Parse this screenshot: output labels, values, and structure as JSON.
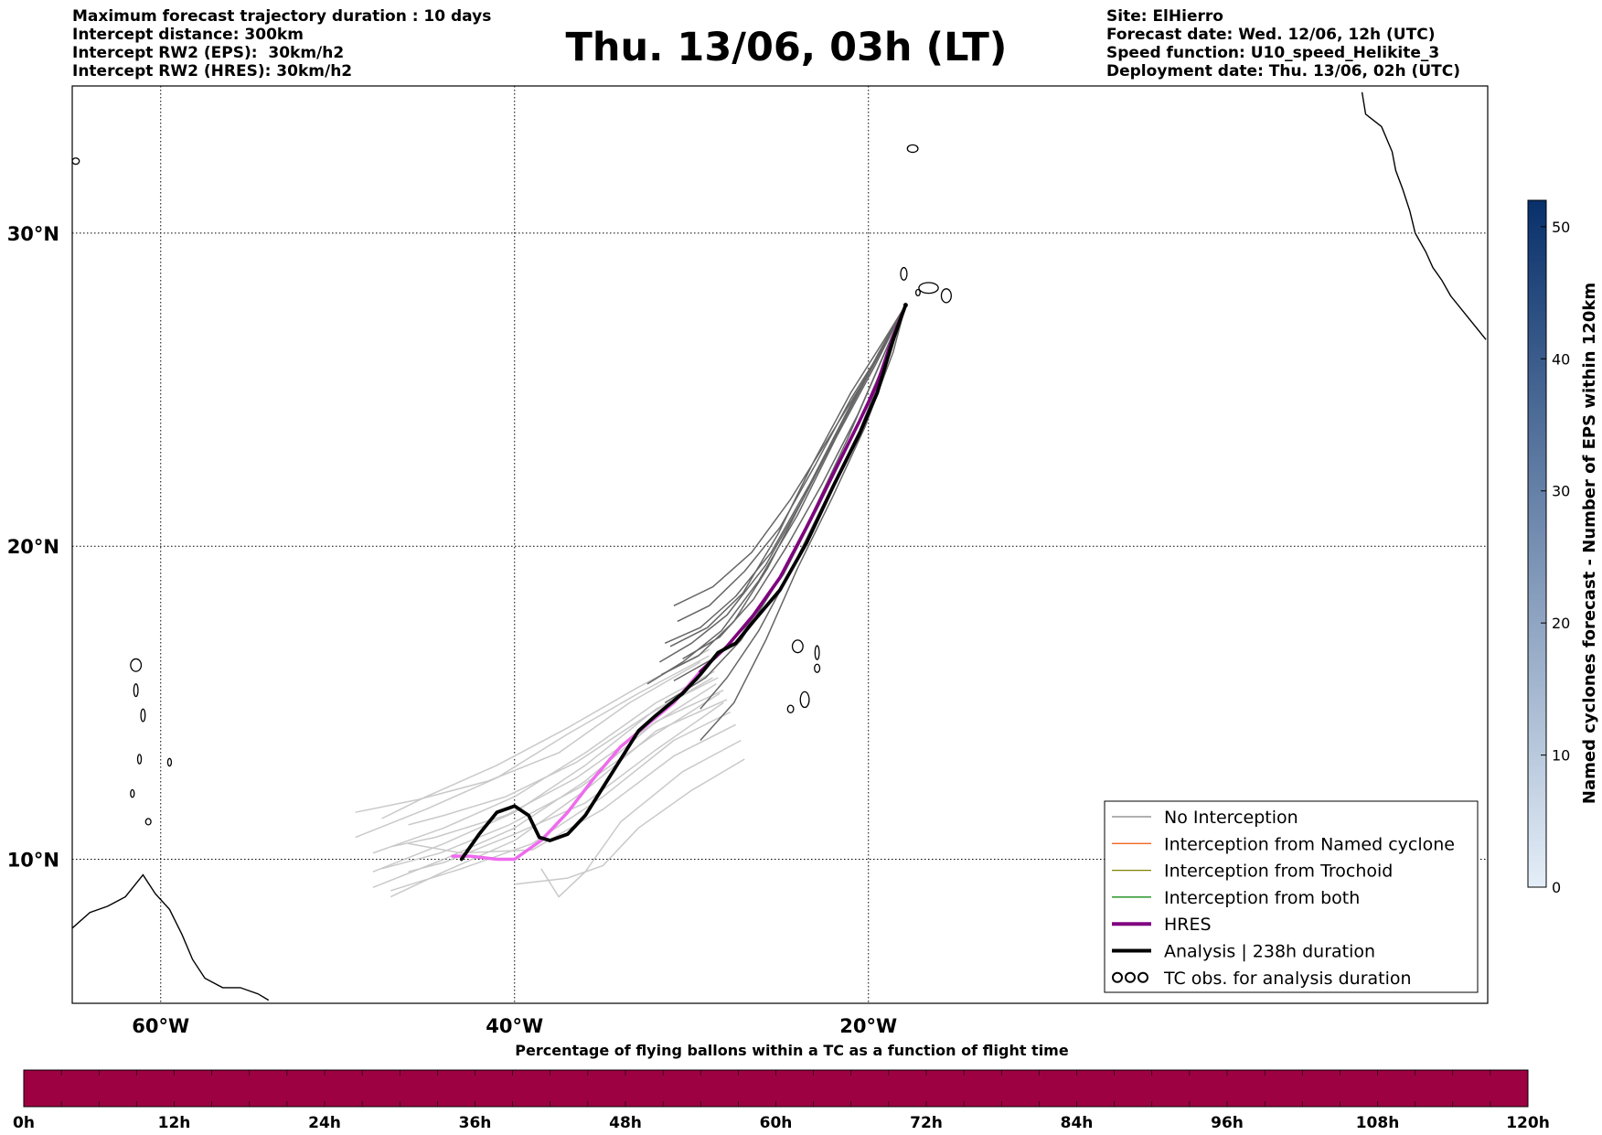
{
  "header_left": [
    "Maximum forecast trajectory duration : 10 days",
    "Intercept distance: 300km",
    "Intercept RW2 (EPS):  30km/h2",
    "Intercept RW2 (HRES): 30km/h2"
  ],
  "title": "Thu. 13/06, 03h (LT)",
  "header_right": [
    "Site: ElHierro",
    "Forecast date: Wed. 12/06, 12h (UTC)",
    "Speed function: U10_speed_Helikite_3",
    "Deployment date: Thu. 13/06, 02h (UTC)"
  ],
  "map": {
    "lon_range": [
      -65,
      15
    ],
    "lat_range": [
      5.4,
      34.7
    ],
    "lat_ticks": [
      {
        "value": 30,
        "label": "30°N"
      },
      {
        "value": 20,
        "label": "20°N"
      },
      {
        "value": 10,
        "label": "10°N"
      }
    ],
    "lon_ticks": [
      {
        "value": -60,
        "label": "60°W"
      },
      {
        "value": -40,
        "label": "40°W"
      },
      {
        "value": -20,
        "label": "20°W"
      }
    ],
    "deployment_site": {
      "lon": -17.9,
      "lat": 27.7
    },
    "hres_track": [
      [
        -17.9,
        27.7
      ],
      [
        -18.6,
        26.7
      ],
      [
        -19.5,
        25.2
      ],
      [
        -20.5,
        24.0
      ],
      [
        -22.0,
        22.3
      ],
      [
        -23.5,
        20.6
      ],
      [
        -25.0,
        19.0
      ],
      [
        -26.5,
        17.8
      ],
      [
        -28.0,
        16.8
      ],
      [
        -29.5,
        16.0
      ],
      [
        -31.0,
        15.0
      ],
      [
        -32.5,
        14.3
      ],
      [
        -34.0,
        13.6
      ],
      [
        -35.5,
        12.6
      ],
      [
        -37.0,
        11.5
      ],
      [
        -38.5,
        10.6
      ],
      [
        -40.0,
        10.0
      ],
      [
        -41.0,
        10.0
      ],
      [
        -42.5,
        10.1
      ],
      [
        -43.5,
        10.1
      ]
    ],
    "analysis_track": [
      [
        -17.9,
        27.7
      ],
      [
        -18.6,
        26.6
      ],
      [
        -19.5,
        24.9
      ],
      [
        -20.5,
        23.6
      ],
      [
        -22.0,
        21.9
      ],
      [
        -23.5,
        20.1
      ],
      [
        -25.0,
        18.6
      ],
      [
        -26.5,
        17.6
      ],
      [
        -27.5,
        16.9
      ],
      [
        -28.5,
        16.6
      ],
      [
        -29.5,
        15.9
      ],
      [
        -30.5,
        15.3
      ],
      [
        -32.0,
        14.6
      ],
      [
        -33.0,
        14.1
      ],
      [
        -34.0,
        13.2
      ],
      [
        -35.0,
        12.3
      ],
      [
        -36.0,
        11.4
      ],
      [
        -37.0,
        10.8
      ],
      [
        -38.0,
        10.6
      ],
      [
        -38.6,
        10.7
      ],
      [
        -39.2,
        11.4
      ],
      [
        -40.0,
        11.7
      ],
      [
        -41.0,
        11.5
      ],
      [
        -42.0,
        10.8
      ],
      [
        -43.0,
        10.0
      ]
    ],
    "eps_far": [
      [
        [
          -29,
          16.7
        ],
        [
          -33,
          15.5
        ],
        [
          -37,
          14.2
        ],
        [
          -41,
          13.0
        ],
        [
          -45,
          12.0
        ],
        [
          -47.5,
          11.3
        ]
      ],
      [
        [
          -29,
          16.5
        ],
        [
          -33,
          15.3
        ],
        [
          -37,
          14.0
        ],
        [
          -41,
          12.6
        ],
        [
          -45,
          11.6
        ],
        [
          -49,
          10.7
        ]
      ],
      [
        [
          -28.7,
          16.0
        ],
        [
          -32,
          15.0
        ],
        [
          -36,
          13.4
        ],
        [
          -40,
          12.0
        ],
        [
          -44,
          11.0
        ],
        [
          -48,
          10.2
        ]
      ],
      [
        [
          -28.5,
          15.8
        ],
        [
          -32,
          14.8
        ],
        [
          -36,
          13.0
        ],
        [
          -40,
          11.5
        ],
        [
          -44,
          10.5
        ],
        [
          -48,
          9.6
        ]
      ],
      [
        [
          -28.2,
          15.4
        ],
        [
          -32,
          14.4
        ],
        [
          -36,
          12.5
        ],
        [
          -40,
          11.0
        ],
        [
          -44,
          10.0
        ],
        [
          -48,
          9.1
        ]
      ],
      [
        [
          -28.0,
          15.1
        ],
        [
          -32,
          14.1
        ],
        [
          -36,
          12.2
        ],
        [
          -40,
          10.6
        ],
        [
          -44,
          9.6
        ],
        [
          -47,
          8.8
        ]
      ],
      [
        [
          -27.8,
          14.7
        ],
        [
          -31,
          13.8
        ],
        [
          -35,
          12.0
        ],
        [
          -39,
          10.5
        ],
        [
          -43,
          9.7
        ],
        [
          -47,
          9.0
        ]
      ],
      [
        [
          -27.5,
          14.3
        ],
        [
          -31,
          13.3
        ],
        [
          -35,
          11.6
        ],
        [
          -39,
          10.3
        ],
        [
          -43,
          10.2
        ],
        [
          -46,
          10.5
        ]
      ],
      [
        [
          -27.2,
          13.8
        ],
        [
          -30.5,
          12.8
        ],
        [
          -34,
          11.2
        ],
        [
          -36,
          9.6
        ],
        [
          -37.5,
          8.8
        ],
        [
          -38.5,
          9.7
        ]
      ],
      [
        [
          -27.0,
          13.2
        ],
        [
          -30,
          12.2
        ],
        [
          -33,
          11.0
        ],
        [
          -35,
          9.8
        ],
        [
          -37,
          9.4
        ],
        [
          -40,
          9.2
        ]
      ],
      [
        [
          -28.8,
          15.8
        ],
        [
          -32.5,
          14.6
        ],
        [
          -36.5,
          13.1
        ],
        [
          -40.5,
          12.0
        ],
        [
          -44,
          11.4
        ],
        [
          -46,
          11.1
        ]
      ],
      [
        [
          -28.6,
          15.6
        ],
        [
          -32.5,
          14.2
        ],
        [
          -36.5,
          12.6
        ],
        [
          -40.5,
          11.4
        ],
        [
          -44.5,
          10.7
        ],
        [
          -47,
          10.4
        ]
      ],
      [
        [
          -28.4,
          15.3
        ],
        [
          -32.3,
          13.9
        ],
        [
          -36.3,
          12.3
        ],
        [
          -40.3,
          11.1
        ],
        [
          -44.2,
          10.2
        ],
        [
          -47.5,
          9.7
        ]
      ],
      [
        [
          -28.2,
          15.0
        ],
        [
          -32.0,
          13.5
        ],
        [
          -36.0,
          11.8
        ],
        [
          -40.0,
          10.8
        ],
        [
          -44.0,
          9.9
        ],
        [
          -46,
          9.6
        ]
      ],
      [
        [
          -29.5,
          16.3
        ],
        [
          -33.5,
          15.0
        ],
        [
          -37.5,
          13.4
        ],
        [
          -41.5,
          12.5
        ],
        [
          -45.5,
          11.9
        ],
        [
          -49,
          11.5
        ]
      ]
    ],
    "eps_near": [
      [
        [
          -17.9,
          27.7
        ],
        [
          -19.0,
          26.5
        ],
        [
          -21.0,
          24.7
        ],
        [
          -23.0,
          22.6
        ],
        [
          -25.0,
          20.6
        ],
        [
          -27.0,
          19.2
        ],
        [
          -29.0,
          18.1
        ],
        [
          -30.8,
          17.6
        ]
      ],
      [
        [
          -17.9,
          27.7
        ],
        [
          -19.2,
          26.4
        ],
        [
          -21.2,
          24.3
        ],
        [
          -23.3,
          22.0
        ],
        [
          -25.5,
          19.8
        ],
        [
          -27.5,
          18.4
        ],
        [
          -29.5,
          17.4
        ],
        [
          -31.5,
          16.9
        ]
      ],
      [
        [
          -17.9,
          27.7
        ],
        [
          -19.4,
          26.2
        ],
        [
          -21.5,
          23.9
        ],
        [
          -23.6,
          21.6
        ],
        [
          -25.8,
          19.4
        ],
        [
          -28.0,
          17.8
        ],
        [
          -30.0,
          16.9
        ],
        [
          -31.8,
          16.3
        ]
      ],
      [
        [
          -17.9,
          27.7
        ],
        [
          -19.0,
          26.0
        ],
        [
          -20.8,
          23.6
        ],
        [
          -22.8,
          21.3
        ],
        [
          -24.8,
          19.1
        ],
        [
          -26.8,
          17.5
        ],
        [
          -28.8,
          16.4
        ],
        [
          -31.0,
          15.7
        ]
      ],
      [
        [
          -17.9,
          27.7
        ],
        [
          -19.3,
          25.9
        ],
        [
          -21.2,
          23.4
        ],
        [
          -23.2,
          21.0
        ],
        [
          -25.2,
          18.8
        ],
        [
          -27.2,
          17.0
        ],
        [
          -29.2,
          15.8
        ],
        [
          -31.5,
          15.0
        ]
      ],
      [
        [
          -17.9,
          27.7
        ],
        [
          -18.8,
          26.1
        ],
        [
          -20.5,
          23.7
        ],
        [
          -22.5,
          21.4
        ],
        [
          -24.4,
          19.2
        ],
        [
          -26.2,
          17.3
        ],
        [
          -28.0,
          15.8
        ],
        [
          -29.5,
          14.8
        ]
      ],
      [
        [
          -17.9,
          27.7
        ],
        [
          -19.6,
          25.8
        ],
        [
          -21.8,
          23.5
        ],
        [
          -24.0,
          21.0
        ],
        [
          -26.2,
          18.9
        ],
        [
          -28.3,
          17.3
        ],
        [
          -30.5,
          16.3
        ],
        [
          -32.5,
          15.6
        ]
      ],
      [
        [
          -17.9,
          27.7
        ],
        [
          -18.6,
          26.2
        ],
        [
          -20.2,
          23.8
        ],
        [
          -22.0,
          21.6
        ],
        [
          -24.0,
          19.3
        ],
        [
          -25.8,
          17.0
        ],
        [
          -27.6,
          15.0
        ],
        [
          -29.5,
          13.8
        ]
      ],
      [
        [
          -17.9,
          27.7
        ],
        [
          -19.8,
          25.7
        ],
        [
          -22.2,
          23.5
        ],
        [
          -24.4,
          21.5
        ],
        [
          -26.6,
          19.8
        ],
        [
          -28.8,
          18.7
        ],
        [
          -31.0,
          18.1
        ]
      ],
      [
        [
          -17.9,
          27.7
        ],
        [
          -18.9,
          26.4
        ],
        [
          -20.6,
          24.2
        ],
        [
          -22.6,
          22.0
        ],
        [
          -24.6,
          20.0
        ],
        [
          -26.5,
          18.3
        ],
        [
          -28.4,
          17.1
        ],
        [
          -30.5,
          16.4
        ]
      ],
      [
        [
          -17.9,
          27.7
        ],
        [
          -19.1,
          26.6
        ],
        [
          -21.0,
          24.9
        ],
        [
          -23.1,
          22.7
        ],
        [
          -25.1,
          20.4
        ],
        [
          -27.1,
          18.5
        ],
        [
          -29.1,
          17.4
        ],
        [
          -31.2,
          16.8
        ]
      ],
      [
        [
          -17.9,
          27.7
        ],
        [
          -19.5,
          26.0
        ],
        [
          -21.6,
          23.8
        ],
        [
          -23.7,
          21.5
        ],
        [
          -25.7,
          19.3
        ],
        [
          -27.6,
          17.6
        ],
        [
          -29.6,
          16.5
        ],
        [
          -31.7,
          15.9
        ]
      ]
    ],
    "islands": [
      {
        "lon": -16.6,
        "lat": 28.25,
        "rx": 0.55,
        "ry": 0.17
      },
      {
        "lon": -18.0,
        "lat": 28.7,
        "rx": 0.18,
        "ry": 0.2
      },
      {
        "lon": -15.6,
        "lat": 28.0,
        "rx": 0.28,
        "ry": 0.22
      },
      {
        "lon": -17.2,
        "lat": 28.1,
        "rx": 0.12,
        "ry": 0.1
      },
      {
        "lon": -24.0,
        "lat": 16.8,
        "rx": 0.3,
        "ry": 0.2
      },
      {
        "lon": -22.9,
        "lat": 16.6,
        "rx": 0.12,
        "ry": 0.22
      },
      {
        "lon": -23.6,
        "lat": 15.1,
        "rx": 0.25,
        "ry": 0.25
      },
      {
        "lon": -24.4,
        "lat": 14.8,
        "rx": 0.17,
        "ry": 0.12
      },
      {
        "lon": -22.9,
        "lat": 16.1,
        "rx": 0.15,
        "ry": 0.13
      },
      {
        "lon": -17.5,
        "lat": 32.7,
        "rx": 0.3,
        "ry": 0.12
      },
      {
        "lon": -61.4,
        "lat": 15.4,
        "rx": 0.12,
        "ry": 0.2
      },
      {
        "lon": -61.0,
        "lat": 14.6,
        "rx": 0.12,
        "ry": 0.2
      },
      {
        "lon": -61.2,
        "lat": 13.2,
        "rx": 0.1,
        "ry": 0.15
      },
      {
        "lon": -61.6,
        "lat": 12.1,
        "rx": 0.1,
        "ry": 0.12
      },
      {
        "lon": -59.5,
        "lat": 13.1,
        "rx": 0.1,
        "ry": 0.12
      },
      {
        "lon": -61.4,
        "lat": 16.2,
        "rx": 0.3,
        "ry": 0.2
      },
      {
        "lon": -60.7,
        "lat": 11.2,
        "rx": 0.15,
        "ry": 0.1
      },
      {
        "lon": -64.8,
        "lat": 32.3,
        "rx": 0.2,
        "ry": 0.1
      }
    ],
    "coast_africa": [
      [
        14.9,
        26.6
      ],
      [
        13.9,
        27.3
      ],
      [
        12.9,
        28.0
      ],
      [
        12.4,
        28.5
      ],
      [
        11.9,
        28.9
      ],
      [
        11.5,
        29.4
      ],
      [
        10.9,
        30.0
      ],
      [
        10.6,
        30.7
      ],
      [
        10.2,
        31.4
      ],
      [
        9.8,
        32.0
      ],
      [
        9.6,
        32.6
      ],
      [
        9.0,
        33.4
      ],
      [
        8.1,
        33.8
      ],
      [
        7.9,
        34.5
      ]
    ],
    "coast_south_america": [
      [
        -65,
        7.8
      ],
      [
        -64,
        8.3
      ],
      [
        -63,
        8.5
      ],
      [
        -62,
        8.8
      ],
      [
        -61,
        9.5
      ],
      [
        -60.3,
        8.9
      ],
      [
        -59.5,
        8.4
      ],
      [
        -58.8,
        7.6
      ],
      [
        -58.2,
        6.8
      ],
      [
        -57.5,
        6.2
      ],
      [
        -56.5,
        5.9
      ],
      [
        -55.5,
        5.9
      ],
      [
        -54.5,
        5.7
      ],
      [
        -53.9,
        5.5
      ]
    ]
  },
  "legend": [
    {
      "label": "No Interception",
      "color": "#808080",
      "kind": "line"
    },
    {
      "label": "Interception from Named cyclone",
      "color": "#f26522",
      "kind": "line"
    },
    {
      "label": "Interception from Trochoid",
      "color": "#808000",
      "kind": "line"
    },
    {
      "label": "Interception from both",
      "color": "#008000",
      "kind": "line"
    },
    {
      "label": "HRES",
      "color": "#800080",
      "kind": "thick"
    },
    {
      "label": "Analysis | 238h duration",
      "color": "#000000",
      "kind": "thick"
    },
    {
      "label": "TC obs. for analysis duration",
      "color": "#000000",
      "kind": "marker"
    }
  ],
  "side_colorbar": {
    "label": "Named cyclones forecast - Number of EPS within 120km",
    "ticks": [
      0,
      10,
      20,
      30,
      40,
      50
    ],
    "range": [
      0,
      52
    ],
    "color_low": "#e4eef8",
    "color_high": "#08306b"
  },
  "bottom_colorbar": {
    "title": "Percentage of flying ballons within a TC as a function of flight time",
    "ticks": [
      "0h",
      "12h",
      "24h",
      "36h",
      "48h",
      "60h",
      "72h",
      "84h",
      "96h",
      "108h",
      "120h"
    ],
    "fill_color": "#9e0142",
    "segments": 40
  },
  "colors": {
    "hres": "#800080",
    "hres_far": "#ee6bee",
    "analysis": "#000000",
    "eps_near": "#666666",
    "eps_far": "#c9c9c9"
  }
}
